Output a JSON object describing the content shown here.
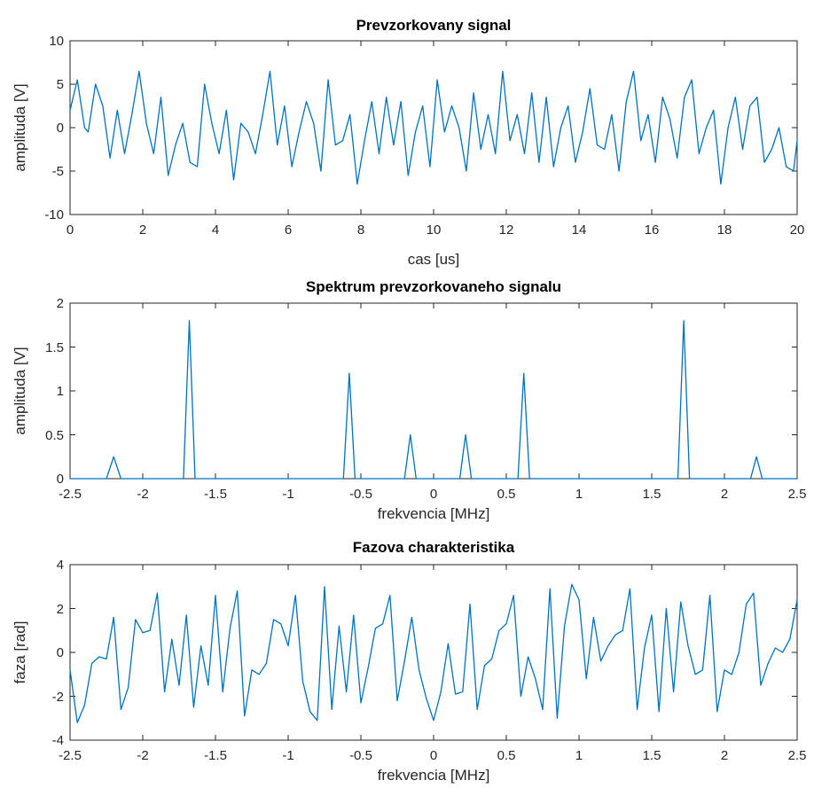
{
  "figure": {
    "line_color": "#0072bd"
  },
  "chart_data": [
    {
      "type": "line",
      "title": "Prevzorkovany signal",
      "xlabel": "cas [us]",
      "ylabel": "amplituda [V]",
      "xlim": [
        0,
        20
      ],
      "ylim": [
        -10,
        10
      ],
      "xticks": [
        0,
        2,
        4,
        6,
        8,
        10,
        12,
        14,
        16,
        18,
        20
      ],
      "yticks": [
        -10,
        -5,
        0,
        5,
        10
      ],
      "grid": false,
      "x": [
        0,
        0.2,
        0.4,
        0.5,
        0.7,
        0.9,
        1.1,
        1.3,
        1.5,
        1.7,
        1.9,
        2.1,
        2.3,
        2.5,
        2.7,
        2.9,
        3.1,
        3.3,
        3.5,
        3.7,
        3.9,
        4.1,
        4.3,
        4.5,
        4.7,
        4.9,
        5.1,
        5.3,
        5.5,
        5.7,
        5.9,
        6.1,
        6.3,
        6.5,
        6.7,
        6.9,
        7.1,
        7.3,
        7.5,
        7.7,
        7.9,
        8.1,
        8.3,
        8.5,
        8.7,
        8.9,
        9.1,
        9.3,
        9.5,
        9.7,
        9.9,
        10.1,
        10.3,
        10.5,
        10.7,
        10.9,
        11.1,
        11.3,
        11.5,
        11.7,
        11.9,
        12.1,
        12.3,
        12.5,
        12.7,
        12.9,
        13.1,
        13.3,
        13.5,
        13.7,
        13.9,
        14.1,
        14.3,
        14.5,
        14.7,
        14.9,
        15.1,
        15.3,
        15.5,
        15.7,
        15.9,
        16.1,
        16.3,
        16.5,
        16.7,
        16.9,
        17.1,
        17.3,
        17.5,
        17.7,
        17.9,
        18.1,
        18.3,
        18.5,
        18.7,
        18.9,
        19.1,
        19.3,
        19.5,
        19.7,
        19.9,
        20.0
      ],
      "values": [
        2.0,
        5.5,
        0.0,
        -0.5,
        5.0,
        2.5,
        -3.5,
        2.0,
        -3.0,
        1.5,
        6.5,
        0.5,
        -3.0,
        3.5,
        -5.5,
        -2.0,
        0.5,
        -4.0,
        -4.5,
        5.0,
        0.5,
        -3.0,
        2.0,
        -6.0,
        0.5,
        -0.5,
        -3.0,
        1.5,
        6.5,
        -2.0,
        2.5,
        -4.5,
        -0.5,
        3.0,
        0.5,
        -5.0,
        5.5,
        -2.0,
        -1.5,
        1.5,
        -6.5,
        -1.5,
        3.0,
        -3.0,
        3.5,
        -2.0,
        3.0,
        -5.5,
        -0.5,
        2.5,
        -4.5,
        5.5,
        -0.5,
        2.5,
        0.0,
        -5.0,
        4.0,
        -2.5,
        1.5,
        -3.0,
        6.5,
        -1.5,
        1.5,
        -3.0,
        4.0,
        -4.0,
        3.5,
        -4.5,
        0.0,
        2.5,
        -4.0,
        -0.5,
        4.5,
        -2.0,
        -2.5,
        1.5,
        -5.0,
        3.0,
        6.5,
        -1.5,
        1.5,
        -4.0,
        3.5,
        1.0,
        -3.5,
        3.5,
        5.5,
        -3.0,
        0.0,
        2.0,
        -6.5,
        0.0,
        3.5,
        -2.5,
        2.5,
        3.5,
        -4.0,
        -2.5,
        0.0,
        -4.5,
        -5.0,
        -1.5
      ]
    },
    {
      "type": "line",
      "title": "Spektrum prevzorkovaneho signalu",
      "xlabel": "frekvencia [MHz]",
      "ylabel": "amplituda [V]",
      "xlim": [
        -2.5,
        2.5
      ],
      "ylim": [
        0,
        2
      ],
      "xticks": [
        -2.5,
        -2,
        -1.5,
        -1,
        -0.5,
        0,
        0.5,
        1,
        1.5,
        2,
        2.5
      ],
      "yticks": [
        0,
        0.5,
        1,
        1.5,
        2
      ],
      "grid": false,
      "x": [
        -2.5,
        -2.25,
        -2.2,
        -2.15,
        -1.72,
        -1.68,
        -1.64,
        -0.62,
        -0.58,
        -0.54,
        -0.2,
        -0.16,
        -0.12,
        0.18,
        0.22,
        0.26,
        0.58,
        0.62,
        0.66,
        1.68,
        1.72,
        1.76,
        2.18,
        2.22,
        2.26,
        2.5
      ],
      "values": [
        0,
        0,
        0.25,
        0,
        0,
        1.8,
        0,
        0,
        1.2,
        0,
        0,
        0.5,
        0,
        0,
        0.5,
        0,
        0,
        1.2,
        0,
        0,
        1.8,
        0,
        0,
        0.25,
        0,
        0
      ]
    },
    {
      "type": "line",
      "title": "Fazova charakteristika",
      "xlabel": "frekvencia [MHz]",
      "ylabel": "faza [rad]",
      "xlim": [
        -2.5,
        2.5
      ],
      "ylim": [
        -4,
        4
      ],
      "xticks": [
        -2.5,
        -2,
        -1.5,
        -1,
        -0.5,
        0,
        0.5,
        1,
        1.5,
        2,
        2.5
      ],
      "yticks": [
        -4,
        -2,
        0,
        2,
        4
      ],
      "grid": false,
      "x": [
        -2.5,
        -2.45,
        -2.4,
        -2.35,
        -2.3,
        -2.25,
        -2.2,
        -2.15,
        -2.1,
        -2.05,
        -2.0,
        -1.95,
        -1.9,
        -1.85,
        -1.8,
        -1.75,
        -1.7,
        -1.65,
        -1.6,
        -1.55,
        -1.5,
        -1.45,
        -1.4,
        -1.35,
        -1.3,
        -1.25,
        -1.2,
        -1.15,
        -1.1,
        -1.05,
        -1.0,
        -0.95,
        -0.9,
        -0.85,
        -0.8,
        -0.75,
        -0.7,
        -0.65,
        -0.6,
        -0.55,
        -0.5,
        -0.45,
        -0.4,
        -0.35,
        -0.3,
        -0.25,
        -0.2,
        -0.15,
        -0.1,
        -0.05,
        0.0,
        0.05,
        0.1,
        0.15,
        0.2,
        0.25,
        0.3,
        0.35,
        0.4,
        0.45,
        0.5,
        0.55,
        0.6,
        0.65,
        0.7,
        0.75,
        0.8,
        0.85,
        0.9,
        0.95,
        1.0,
        1.05,
        1.1,
        1.15,
        1.2,
        1.25,
        1.3,
        1.35,
        1.4,
        1.45,
        1.5,
        1.55,
        1.6,
        1.65,
        1.7,
        1.75,
        1.8,
        1.85,
        1.9,
        1.95,
        2.0,
        2.05,
        2.1,
        2.15,
        2.2,
        2.25,
        2.3,
        2.35,
        2.4,
        2.45,
        2.5
      ],
      "values": [
        -0.8,
        -3.2,
        -2.4,
        -0.5,
        -0.2,
        -0.3,
        1.6,
        -2.6,
        -1.6,
        1.5,
        0.9,
        1.0,
        2.7,
        -1.8,
        0.6,
        -1.5,
        1.7,
        -2.5,
        0.3,
        -1.5,
        2.6,
        -1.8,
        1.1,
        2.8,
        -2.9,
        -0.8,
        -1.0,
        -0.5,
        1.5,
        1.3,
        0.3,
        2.6,
        -1.3,
        -2.7,
        -3.1,
        3.0,
        -2.6,
        1.2,
        -1.8,
        1.7,
        -2.3,
        -0.7,
        1.1,
        1.3,
        2.6,
        -2.2,
        -0.4,
        1.6,
        -0.8,
        -2.1,
        -3.1,
        -1.8,
        0.4,
        -1.9,
        -1.8,
        2.2,
        -2.6,
        -0.6,
        -0.3,
        1.0,
        1.3,
        2.6,
        -2.0,
        -0.2,
        -1.2,
        -2.6,
        2.9,
        -3.0,
        1.2,
        3.1,
        2.4,
        -1.2,
        1.6,
        -0.4,
        0.3,
        0.8,
        1.0,
        2.9,
        -2.6,
        0.2,
        1.7,
        -2.7,
        2.0,
        -1.8,
        2.3,
        0.3,
        -1.0,
        -0.8,
        2.6,
        -2.7,
        -0.8,
        -1.0,
        0.0,
        2.2,
        2.7,
        -1.5,
        -0.5,
        0.2,
        0.0,
        0.6,
        2.4
      ]
    }
  ]
}
